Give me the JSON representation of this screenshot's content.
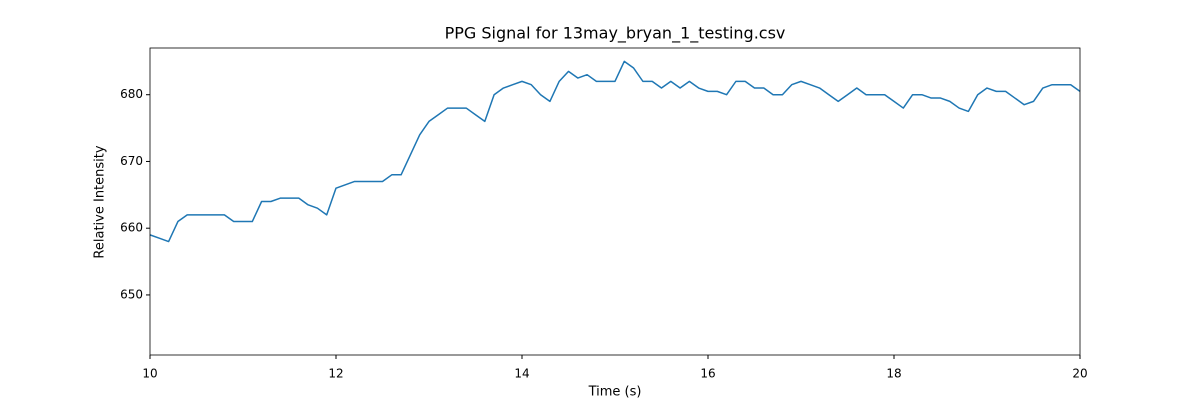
{
  "chart_data": {
    "type": "line",
    "title": "PPG Signal for 13may_bryan_1_testing.csv",
    "x_label": "Time (s)",
    "y_label": "Relative Intensity",
    "x": [
      10.0,
      10.1,
      10.2,
      10.3,
      10.4,
      10.5,
      10.6,
      10.7,
      10.8,
      10.9,
      11.0,
      11.1,
      11.2,
      11.3,
      11.4,
      11.5,
      11.6,
      11.7,
      11.8,
      11.9,
      12.0,
      12.1,
      12.2,
      12.3,
      12.4,
      12.5,
      12.6,
      12.7,
      12.8,
      12.9,
      13.0,
      13.1,
      13.2,
      13.3,
      13.4,
      13.5,
      13.6,
      13.7,
      13.8,
      13.9,
      14.0,
      14.1,
      14.2,
      14.3,
      14.4,
      14.5,
      14.6,
      14.7,
      14.8,
      14.9,
      15.0,
      15.1,
      15.2,
      15.3,
      15.4,
      15.5,
      15.6,
      15.7,
      15.8,
      15.9,
      16.0,
      16.1,
      16.2,
      16.3,
      16.4,
      16.5,
      16.6,
      16.7,
      16.8,
      16.9,
      17.0,
      17.1,
      17.2,
      17.3,
      17.4,
      17.5,
      17.6,
      17.7,
      17.8,
      17.9,
      18.0,
      18.1,
      18.2,
      18.3,
      18.4,
      18.5,
      18.6,
      18.7,
      18.8,
      18.9,
      19.0,
      19.1,
      19.2,
      19.3,
      19.4,
      19.5,
      19.6,
      19.7,
      19.8,
      19.9,
      20.0
    ],
    "series": [
      {
        "color": "#1f77b4",
        "values": [
          659,
          658.5,
          658,
          661,
          662,
          662,
          662,
          662,
          662,
          661,
          661,
          661,
          664,
          664,
          664.5,
          664.5,
          664.5,
          663.5,
          663,
          662,
          666,
          666.5,
          667,
          667,
          667,
          667,
          668,
          668,
          671,
          674,
          676,
          677,
          678,
          678,
          678,
          677,
          676,
          680,
          681,
          681.5,
          682,
          681.5,
          680,
          679,
          682,
          683.5,
          682.5,
          683,
          682,
          682,
          682,
          685,
          684,
          682,
          682,
          681,
          682,
          681,
          682,
          681,
          680.5,
          680.5,
          680,
          682,
          682,
          681,
          681,
          680,
          680,
          681.5,
          682,
          681.5,
          681,
          680,
          679,
          680,
          681,
          680,
          680,
          680,
          679,
          678,
          680,
          680,
          679.5,
          679.5,
          679,
          678,
          677.5,
          680,
          681,
          680.5,
          680.5,
          679.5,
          678.5,
          679,
          681,
          681.5,
          681.5,
          681.5,
          680.5
        ]
      }
    ],
    "xlim": [
      10,
      20
    ],
    "ylim": [
      641,
      687
    ],
    "xticks": [
      10,
      12,
      14,
      16,
      18,
      20
    ],
    "yticks": [
      650,
      660,
      670,
      680
    ]
  }
}
